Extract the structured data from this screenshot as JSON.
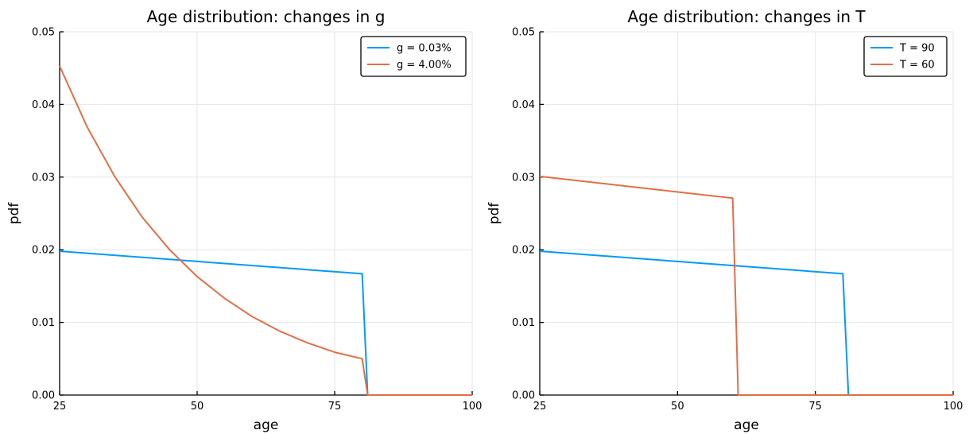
{
  "chart_data": [
    {
      "type": "line",
      "title": "Age distribution: changes in g",
      "xlabel": "age",
      "ylabel": "pdf",
      "xlim": [
        25,
        100
      ],
      "ylim": [
        0,
        0.05
      ],
      "xticks": [
        25,
        50,
        75,
        100
      ],
      "xtick_labels": [
        "25",
        "50",
        "75",
        "100"
      ],
      "yticks": [
        0,
        0.01,
        0.02,
        0.03,
        0.04,
        0.05
      ],
      "ytick_labels": [
        "0.00",
        "0.01",
        "0.02",
        "0.03",
        "0.04",
        "0.05"
      ],
      "grid": true,
      "legend_position": "top-right",
      "series": [
        {
          "name": "g = 0.03%",
          "color": "#009AFA",
          "x": [
            25,
            80,
            81,
            100
          ],
          "y": [
            0.0198,
            0.0167,
            0.0,
            0.0
          ]
        },
        {
          "name": "g = 4.00%",
          "color": "#E26F46",
          "x": [
            25,
            30,
            35,
            40,
            45,
            50,
            55,
            60,
            65,
            70,
            75,
            80,
            81,
            100
          ],
          "y": [
            0.0453,
            0.0369,
            0.0301,
            0.0245,
            0.02,
            0.0163,
            0.0133,
            0.0108,
            0.0088,
            0.0072,
            0.0059,
            0.005,
            0.0,
            0.0
          ]
        }
      ]
    },
    {
      "type": "line",
      "title": "Age distribution: changes in T",
      "xlabel": "age",
      "ylabel": "pdf",
      "xlim": [
        25,
        100
      ],
      "ylim": [
        0,
        0.05
      ],
      "xticks": [
        25,
        50,
        75,
        100
      ],
      "xtick_labels": [
        "25",
        "50",
        "75",
        "100"
      ],
      "yticks": [
        0,
        0.01,
        0.02,
        0.03,
        0.04,
        0.05
      ],
      "ytick_labels": [
        "0.00",
        "0.01",
        "0.02",
        "0.03",
        "0.04",
        "0.05"
      ],
      "grid": true,
      "legend_position": "top-right",
      "series": [
        {
          "name": "T = 90",
          "color": "#009AFA",
          "x": [
            25,
            80,
            81,
            100
          ],
          "y": [
            0.0198,
            0.0167,
            0.0,
            0.0
          ]
        },
        {
          "name": "T = 60",
          "color": "#E26F46",
          "x": [
            25,
            60,
            61,
            100
          ],
          "y": [
            0.0301,
            0.0271,
            0.0,
            0.0
          ]
        }
      ]
    }
  ]
}
